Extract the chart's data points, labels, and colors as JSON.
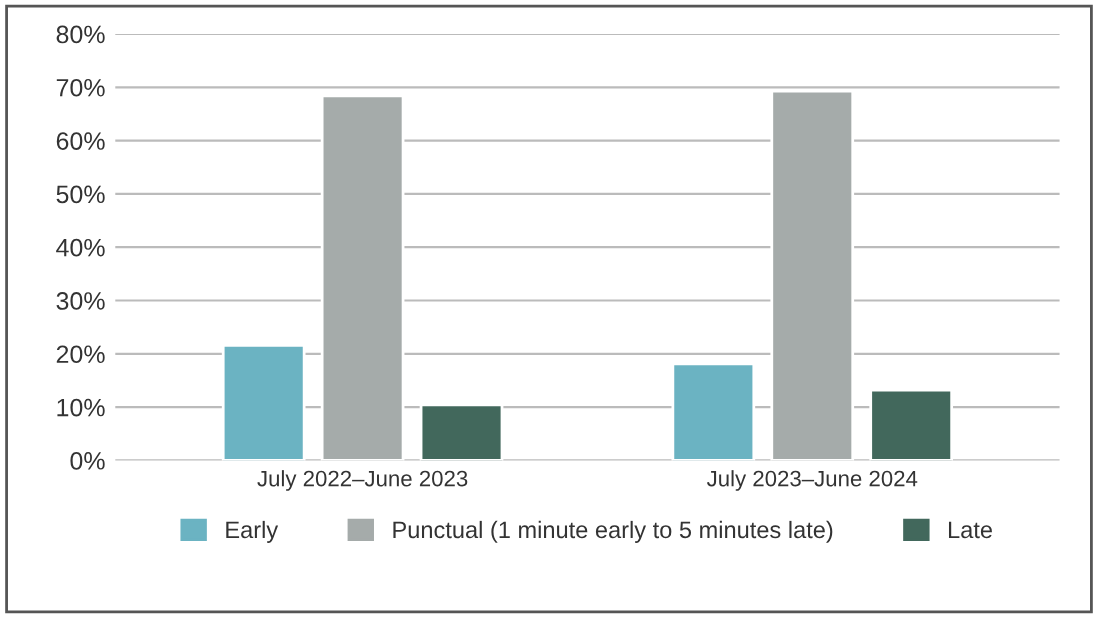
{
  "chart_data": {
    "type": "bar",
    "categories": [
      "July 2022–June 2023",
      "July 2023–June 2024"
    ],
    "series": [
      {
        "name": "Early",
        "color": "#6bb3c2",
        "values": [
          21.6,
          18.1
        ]
      },
      {
        "name": "Punctual (1 minute early to 5 minutes late)",
        "color": "#a5abaa",
        "values": [
          68.4,
          69.3
        ]
      },
      {
        "name": "Late",
        "color": "#42685c",
        "values": [
          10.4,
          13.2
        ]
      }
    ],
    "ylim": [
      0,
      80
    ],
    "yticks": [
      {
        "value": 0,
        "label": "0%"
      },
      {
        "value": 10,
        "label": "10%"
      },
      {
        "value": 20,
        "label": "20%"
      },
      {
        "value": 30,
        "label": "30%"
      },
      {
        "value": 40,
        "label": "40%"
      },
      {
        "value": 50,
        "label": "50%"
      },
      {
        "value": 60,
        "label": "60%"
      },
      {
        "value": 70,
        "label": "70%"
      },
      {
        "value": 80,
        "label": "80%"
      }
    ],
    "grid": "y",
    "legend": "bottom"
  }
}
